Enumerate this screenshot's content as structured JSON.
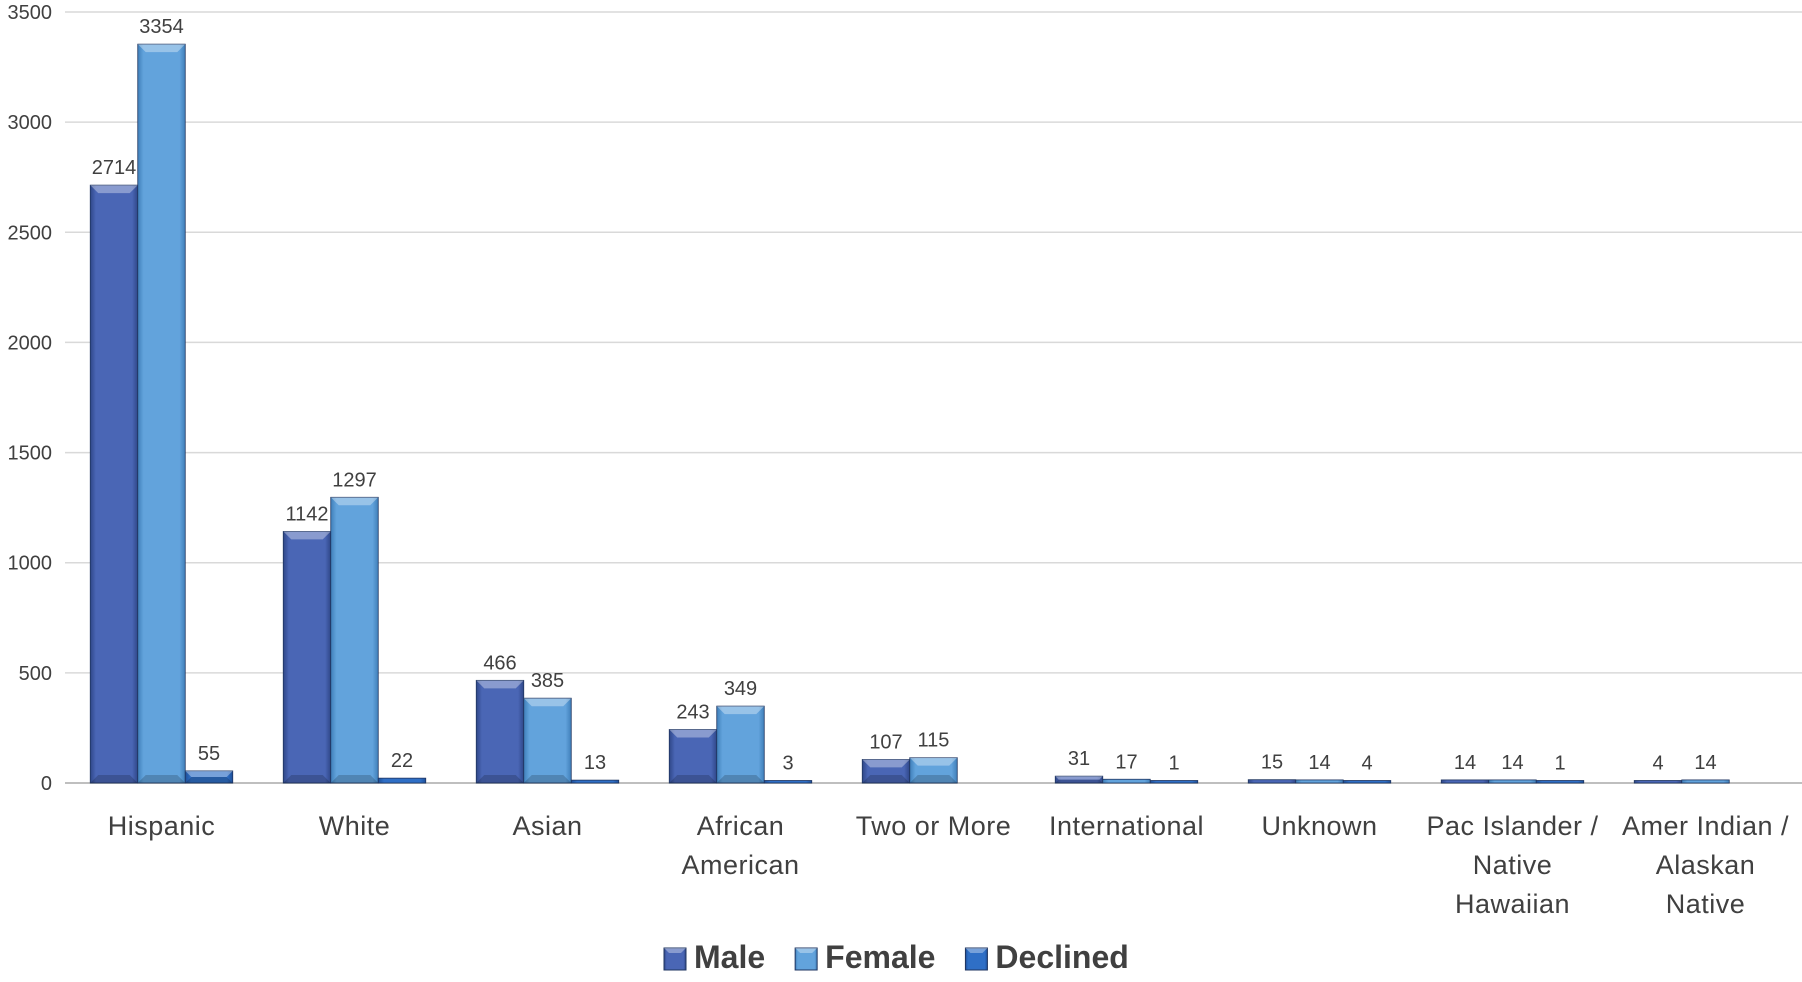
{
  "chart_data": {
    "type": "bar",
    "categories": [
      [
        "Hispanic"
      ],
      [
        "White"
      ],
      [
        "Asian"
      ],
      [
        "African",
        "American"
      ],
      [
        "Two or More"
      ],
      [
        "International"
      ],
      [
        "Unknown"
      ],
      [
        "Pac Islander /",
        "Native",
        "Hawaiian"
      ],
      [
        "Amer Indian /",
        "Alaskan",
        "Native"
      ]
    ],
    "series": [
      {
        "name": "Male",
        "color": "#4a66b5",
        "values": [
          2714,
          1142,
          466,
          243,
          107,
          31,
          15,
          14,
          4
        ]
      },
      {
        "name": "Female",
        "color": "#62a3dc",
        "values": [
          3354,
          1297,
          385,
          349,
          115,
          17,
          14,
          14,
          14
        ]
      },
      {
        "name": "Declined",
        "color": "#2f6fc6",
        "values": [
          55,
          22,
          13,
          3,
          null,
          1,
          4,
          1,
          null
        ]
      }
    ],
    "ylim": [
      0,
      3500
    ],
    "yticks": [
      0,
      500,
      1000,
      1500,
      2000,
      2500,
      3000,
      3500
    ],
    "grid": true,
    "legend": "bottom",
    "title": "",
    "xlabel": "",
    "ylabel": ""
  }
}
